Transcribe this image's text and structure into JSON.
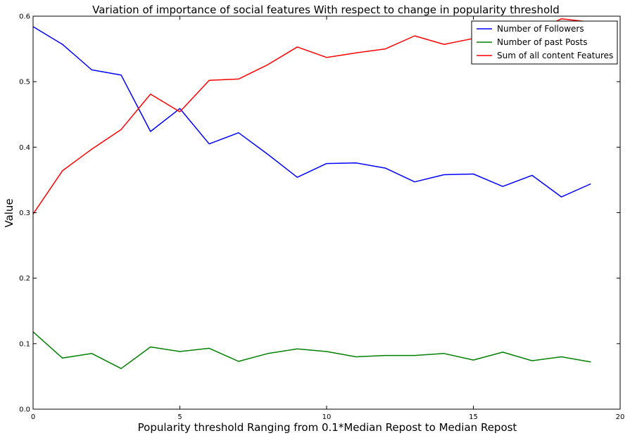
{
  "chart_data": {
    "type": "line",
    "title": "Variation of importance of social features With respect to change in popularity threshold",
    "xlabel": "Popularity threshold Ranging from 0.1*Median Repost to Median Repost",
    "ylabel": "Value",
    "xlim": [
      0,
      20
    ],
    "ylim": [
      0.0,
      0.6
    ],
    "xticks": [
      0,
      5,
      10,
      15,
      20
    ],
    "yticks": [
      0.0,
      0.1,
      0.2,
      0.3,
      0.4,
      0.5,
      0.6
    ],
    "xtick_labels": [
      "0",
      "5",
      "10",
      "15",
      "20"
    ],
    "ytick_labels": [
      "0.0",
      "0.1",
      "0.2",
      "0.3",
      "0.4",
      "0.5",
      "0.6"
    ],
    "grid": false,
    "legend_position": "top-right",
    "x": [
      0,
      1,
      2,
      3,
      4,
      5,
      6,
      7,
      8,
      9,
      10,
      11,
      12,
      13,
      14,
      15,
      16,
      17,
      18,
      19
    ],
    "series": [
      {
        "name": "Number of Followers",
        "color": "#0000ff",
        "values": [
          0.584,
          0.557,
          0.518,
          0.51,
          0.424,
          0.459,
          0.405,
          0.422,
          0.389,
          0.354,
          0.375,
          0.376,
          0.368,
          0.347,
          0.358,
          0.359,
          0.34,
          0.357,
          0.324,
          0.344
        ]
      },
      {
        "name": "Number of past Posts",
        "color": "#008000",
        "values": [
          0.118,
          0.078,
          0.085,
          0.062,
          0.095,
          0.088,
          0.093,
          0.073,
          0.085,
          0.092,
          0.088,
          0.08,
          0.082,
          0.082,
          0.085,
          0.075,
          0.087,
          0.074,
          0.08,
          0.072
        ]
      },
      {
        "name": "Sum of all content Features",
        "color": "#ff0000",
        "values": [
          0.298,
          0.364,
          0.397,
          0.427,
          0.481,
          0.454,
          0.502,
          0.504,
          0.526,
          0.553,
          0.537,
          0.544,
          0.55,
          0.57,
          0.557,
          0.566,
          0.562,
          0.575,
          0.596,
          0.591
        ]
      }
    ]
  }
}
